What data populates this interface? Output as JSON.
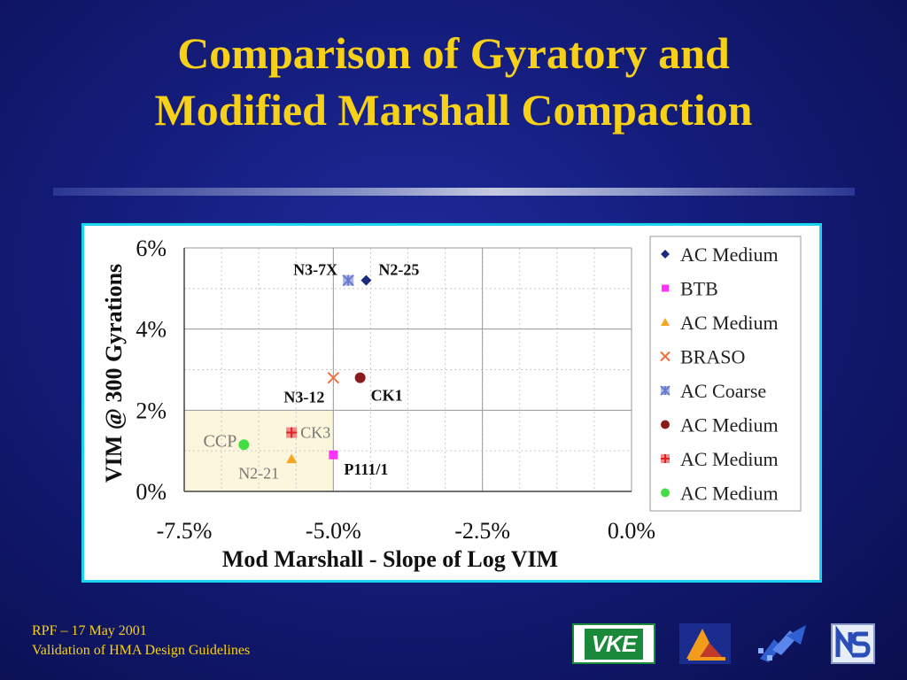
{
  "slide": {
    "title_line1": "Comparison of Gyratory and",
    "title_line2": "Modified Marshall Compaction"
  },
  "footer": {
    "line1": "RPF – 17 May 2001",
    "line2": "Validation of HMA Design Guidelines"
  },
  "logos": {
    "vke_text": "VKE"
  },
  "colors": {
    "background": "#141c7a",
    "title": "#f7d117",
    "panel_border": "#19d6f0",
    "highlight_region": "#fbf6dc"
  },
  "chart_data": {
    "type": "scatter",
    "xlabel": "Mod Marshall - Slope of Log VIM",
    "ylabel": "VIM @ 300 Gyrations",
    "xlim": [
      -0.075,
      0.0
    ],
    "ylim": [
      0.0,
      0.06
    ],
    "x_ticks": [
      -0.075,
      -0.05,
      -0.025,
      0.0
    ],
    "x_tick_labels": [
      "-7.5%",
      "-5.0%",
      "-2.5%",
      "0.0%"
    ],
    "y_ticks": [
      0.0,
      0.02,
      0.04,
      0.06
    ],
    "y_tick_labels": [
      "0%",
      "2%",
      "4%",
      "6%"
    ],
    "grid": true,
    "legend_position": "right",
    "highlight_region": {
      "x": [
        -0.075,
        -0.05
      ],
      "y": [
        0.0,
        0.02
      ]
    },
    "series": [
      {
        "name": "AC Medium",
        "marker": "diamond",
        "color": "#1b2a7c",
        "points": [
          {
            "x": -0.0445,
            "y": 0.052,
            "label": "N2-25"
          }
        ]
      },
      {
        "name": "BTB",
        "marker": "square",
        "color": "#ff33ff",
        "points": [
          {
            "x": -0.05,
            "y": 0.009,
            "label": "P111/1"
          }
        ]
      },
      {
        "name": "AC Medium",
        "marker": "triangle",
        "color": "#f5a623",
        "points": [
          {
            "x": -0.057,
            "y": 0.008,
            "label": "N2-21"
          }
        ]
      },
      {
        "name": "BRASO",
        "marker": "x",
        "color": "#f07040",
        "points": [
          {
            "x": -0.05,
            "y": 0.028,
            "label": "N3-12"
          }
        ]
      },
      {
        "name": "AC Coarse",
        "marker": "star",
        "color": "#6677cc",
        "points": [
          {
            "x": -0.0475,
            "y": 0.052,
            "label": "N3-7X"
          }
        ]
      },
      {
        "name": "AC Medium",
        "marker": "circle",
        "color": "#8b1a1a",
        "points": [
          {
            "x": -0.0455,
            "y": 0.028,
            "label": "CK1"
          }
        ]
      },
      {
        "name": "AC Medium",
        "marker": "plus-square",
        "color": "#dd2222",
        "points": [
          {
            "x": -0.057,
            "y": 0.0145,
            "label": "CK3"
          }
        ]
      },
      {
        "name": "AC Medium",
        "marker": "circle",
        "color": "#44dd44",
        "points": [
          {
            "x": -0.065,
            "y": 0.0115,
            "label": "CCP"
          }
        ]
      }
    ]
  }
}
